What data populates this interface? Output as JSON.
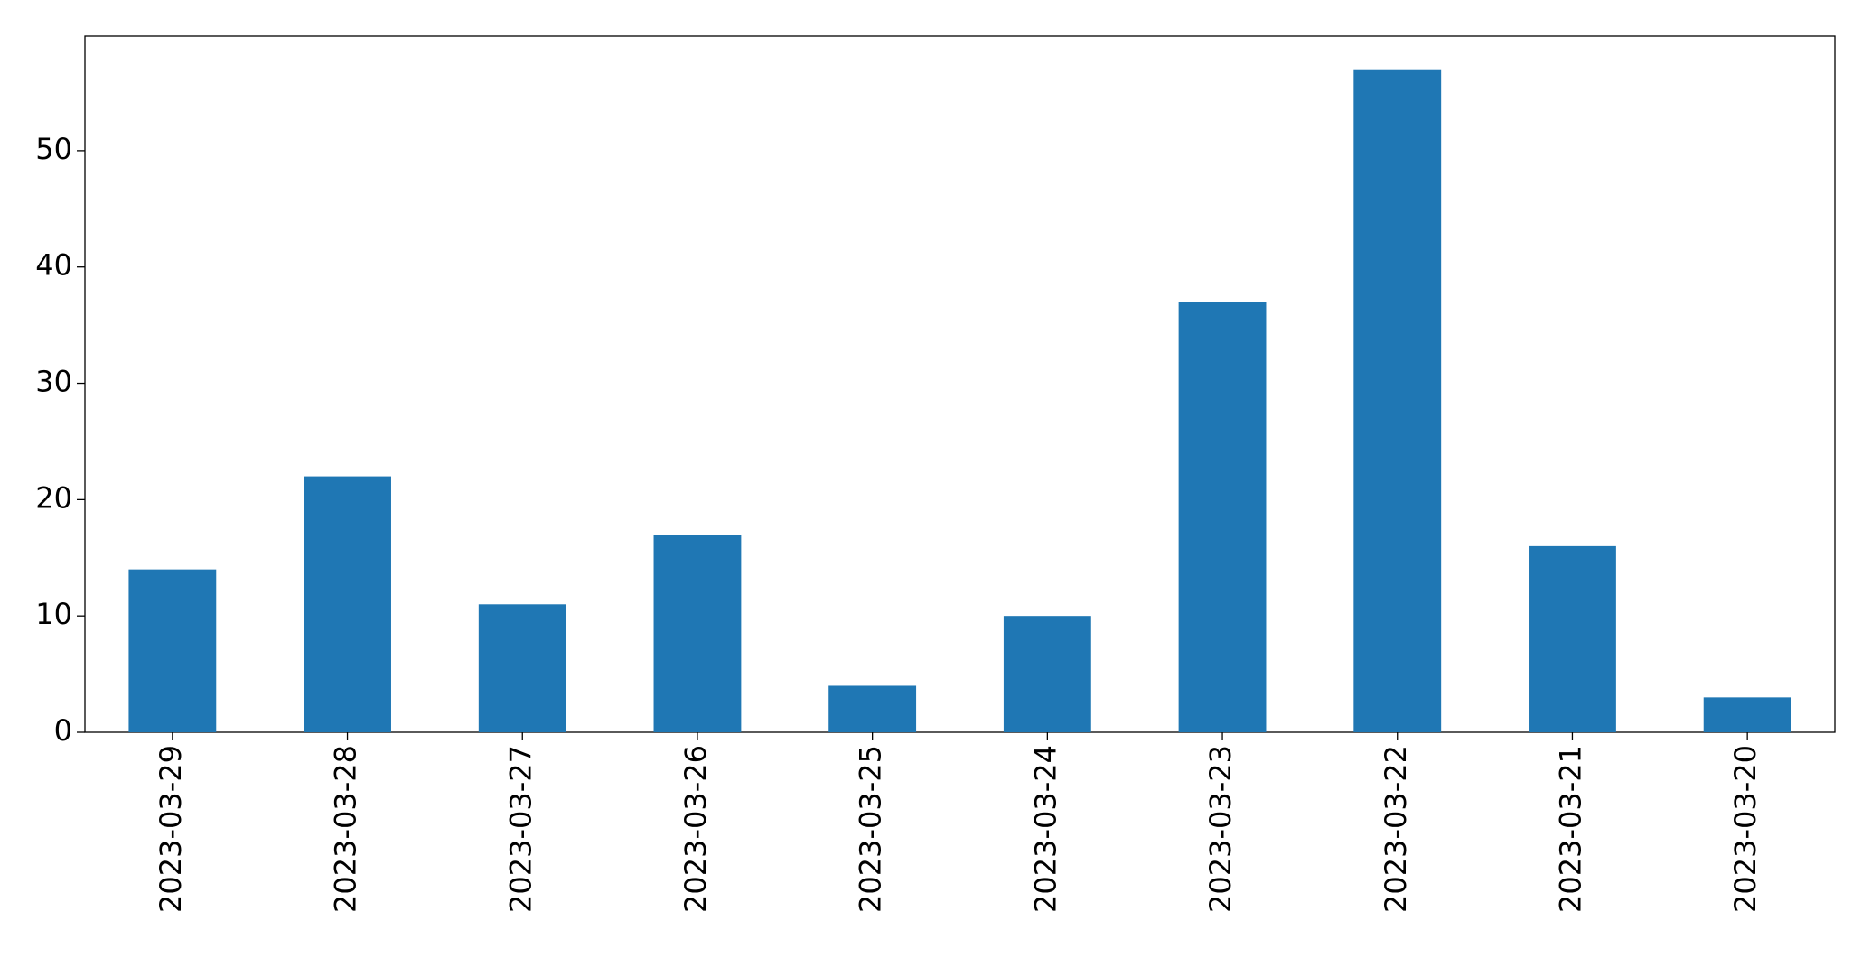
{
  "chart_data": {
    "type": "bar",
    "categories": [
      "2023-03-29",
      "2023-03-28",
      "2023-03-27",
      "2023-03-26",
      "2023-03-25",
      "2023-03-24",
      "2023-03-23",
      "2023-03-22",
      "2023-03-21",
      "2023-03-20"
    ],
    "values": [
      14,
      22,
      11,
      17,
      4,
      10,
      37,
      57,
      16,
      3
    ],
    "color": "#1f77b4",
    "ylim": [
      0,
      59.85
    ],
    "yticks": [
      0,
      10,
      20,
      30,
      40,
      50
    ],
    "grid": false
  }
}
